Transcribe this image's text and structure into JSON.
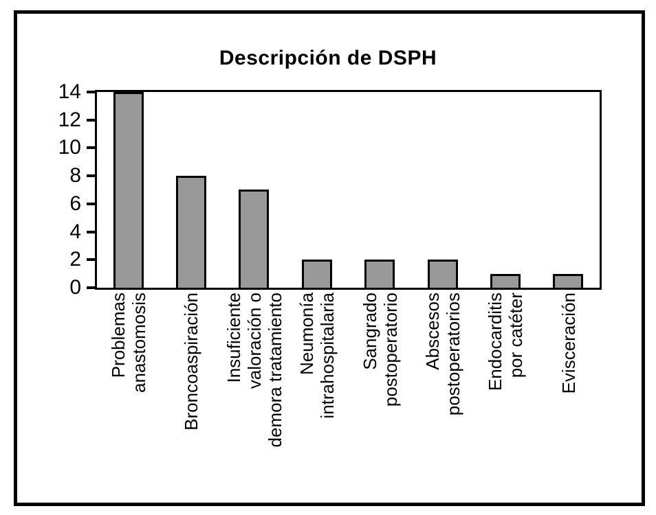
{
  "chart_data": {
    "type": "bar",
    "title": "Descripción de DSPH",
    "categories": [
      "Problemas\nanastomosis",
      "Broncoaspiración",
      "Insuficiente\nvaloración o\ndemora tratamiento",
      "Neumonía\nintrahospitalaria",
      "Sangrado\npostoperatorio",
      "Abscesos\npostoperatorios",
      "Endocarditis\npor catéter",
      "Evisceración"
    ],
    "values": [
      14,
      8,
      7,
      2,
      2,
      2,
      1,
      1
    ],
    "xlabel": "",
    "ylabel": "",
    "ylim": [
      0,
      14
    ],
    "yticks": [
      0,
      2,
      4,
      6,
      8,
      10,
      12,
      14
    ],
    "grid": false,
    "legend": false,
    "bar_color": "#999999",
    "bar_border_color": "#000000",
    "frame_color": "#000000",
    "background_color": "#ffffff"
  }
}
